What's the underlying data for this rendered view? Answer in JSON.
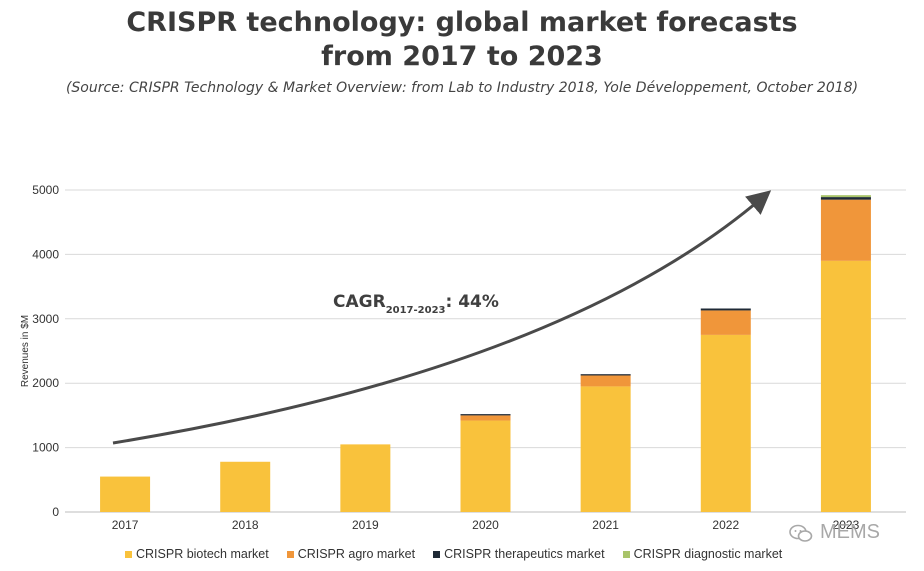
{
  "header": {
    "title_line1": "CRISPR technology: global market forecasts",
    "title_line2": "from 2017 to 2023",
    "source": "(Source: CRISPR Technology & Market Overview: from Lab to Industry 2018, Yole Développement, October 2018)"
  },
  "annotation": {
    "cagr_main": "CAGR",
    "cagr_sub": "2017-2023",
    "cagr_value": ": 44%"
  },
  "watermark": {
    "text": "MEMS"
  },
  "chart_data": {
    "type": "bar",
    "stacked": true,
    "ylabel": "Revenues in $M",
    "xlabel": "",
    "ylim": [
      0,
      5000
    ],
    "yticks": [
      0,
      1000,
      2000,
      3000,
      4000,
      5000
    ],
    "grid": true,
    "legend_position": "bottom",
    "categories": [
      "2017",
      "2018",
      "2019",
      "2020",
      "2021",
      "2022",
      "2023"
    ],
    "series": [
      {
        "name": "CRISPR biotech market",
        "color": "#F9C23C",
        "values": [
          550,
          780,
          1050,
          1420,
          1950,
          2750,
          3900
        ]
      },
      {
        "name": "CRISPR agro market",
        "color": "#F0963A",
        "values": [
          0,
          0,
          0,
          80,
          170,
          380,
          950
        ]
      },
      {
        "name": "CRISPR therapeutics market",
        "color": "#1F2A36",
        "values": [
          0,
          0,
          0,
          20,
          20,
          30,
          40
        ]
      },
      {
        "name": "CRISPR diagnostic market",
        "color": "#A9C46A",
        "values": [
          0,
          0,
          0,
          0,
          0,
          0,
          30
        ]
      }
    ]
  }
}
